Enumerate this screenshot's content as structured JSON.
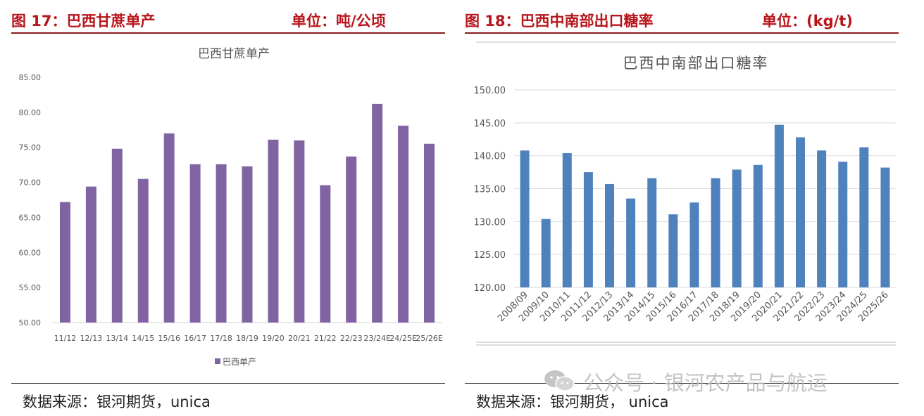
{
  "left": {
    "header_title": "图 17：巴西甘蔗单产",
    "header_unit": "单位：吨/公顷",
    "source": "数据来源：银河期货，unica"
  },
  "right": {
    "header_title": "图 18：巴西中南部出口糖率",
    "header_unit": "单位：(kg/t)",
    "source": "数据来源：银河期货，  unica"
  },
  "watermark": "公众号 · 银河农产品与航运",
  "colors": {
    "left_bar": "#8064a2",
    "right_bar": "#4f81bd",
    "header_red": "#b8151b"
  },
  "chart_data": [
    {
      "type": "bar",
      "title": "巴西甘蔗单产",
      "categories": [
        "11/12",
        "12/13",
        "13/14",
        "14/15",
        "15/16",
        "16/17",
        "17/18",
        "18/19",
        "19/20",
        "20/21",
        "21/22",
        "22/23",
        "23/24E",
        "24/25E",
        "25/26E"
      ],
      "series": [
        {
          "name": "巴西单产",
          "values": [
            67.2,
            69.4,
            74.8,
            70.5,
            77.0,
            72.6,
            72.6,
            72.3,
            76.1,
            76.0,
            69.6,
            73.7,
            81.2,
            78.1,
            75.5
          ]
        }
      ],
      "ylim": [
        50,
        85
      ],
      "yticks": [
        "50.00",
        "55.00",
        "60.00",
        "65.00",
        "70.00",
        "75.00",
        "80.00",
        "85.00"
      ],
      "xlabel": "",
      "ylabel": "",
      "legend": "bottom"
    },
    {
      "type": "bar",
      "title": "巴西中南部出口糖率",
      "categories": [
        "2008/09",
        "2009/10",
        "2010/11",
        "2011/12",
        "2012/13",
        "2013/14",
        "2014/15",
        "2015/16",
        "2016/17",
        "2017/18",
        "2018/19",
        "2019/20",
        "2020/21",
        "2021/22",
        "2022/23",
        "2023/24",
        "2024/25",
        "2025/26"
      ],
      "series": [
        {
          "name": "巴西中南部出口糖率",
          "values": [
            140.8,
            130.4,
            140.4,
            137.5,
            135.7,
            133.5,
            136.6,
            131.1,
            132.9,
            136.6,
            137.9,
            138.6,
            144.7,
            142.8,
            140.8,
            139.1,
            141.3,
            138.2
          ]
        }
      ],
      "ylim": [
        120,
        150
      ],
      "yticks": [
        "120.00",
        "125.00",
        "130.00",
        "135.00",
        "140.00",
        "145.00",
        "150.00"
      ],
      "xlabel": "",
      "ylabel": "",
      "grid": true
    }
  ]
}
